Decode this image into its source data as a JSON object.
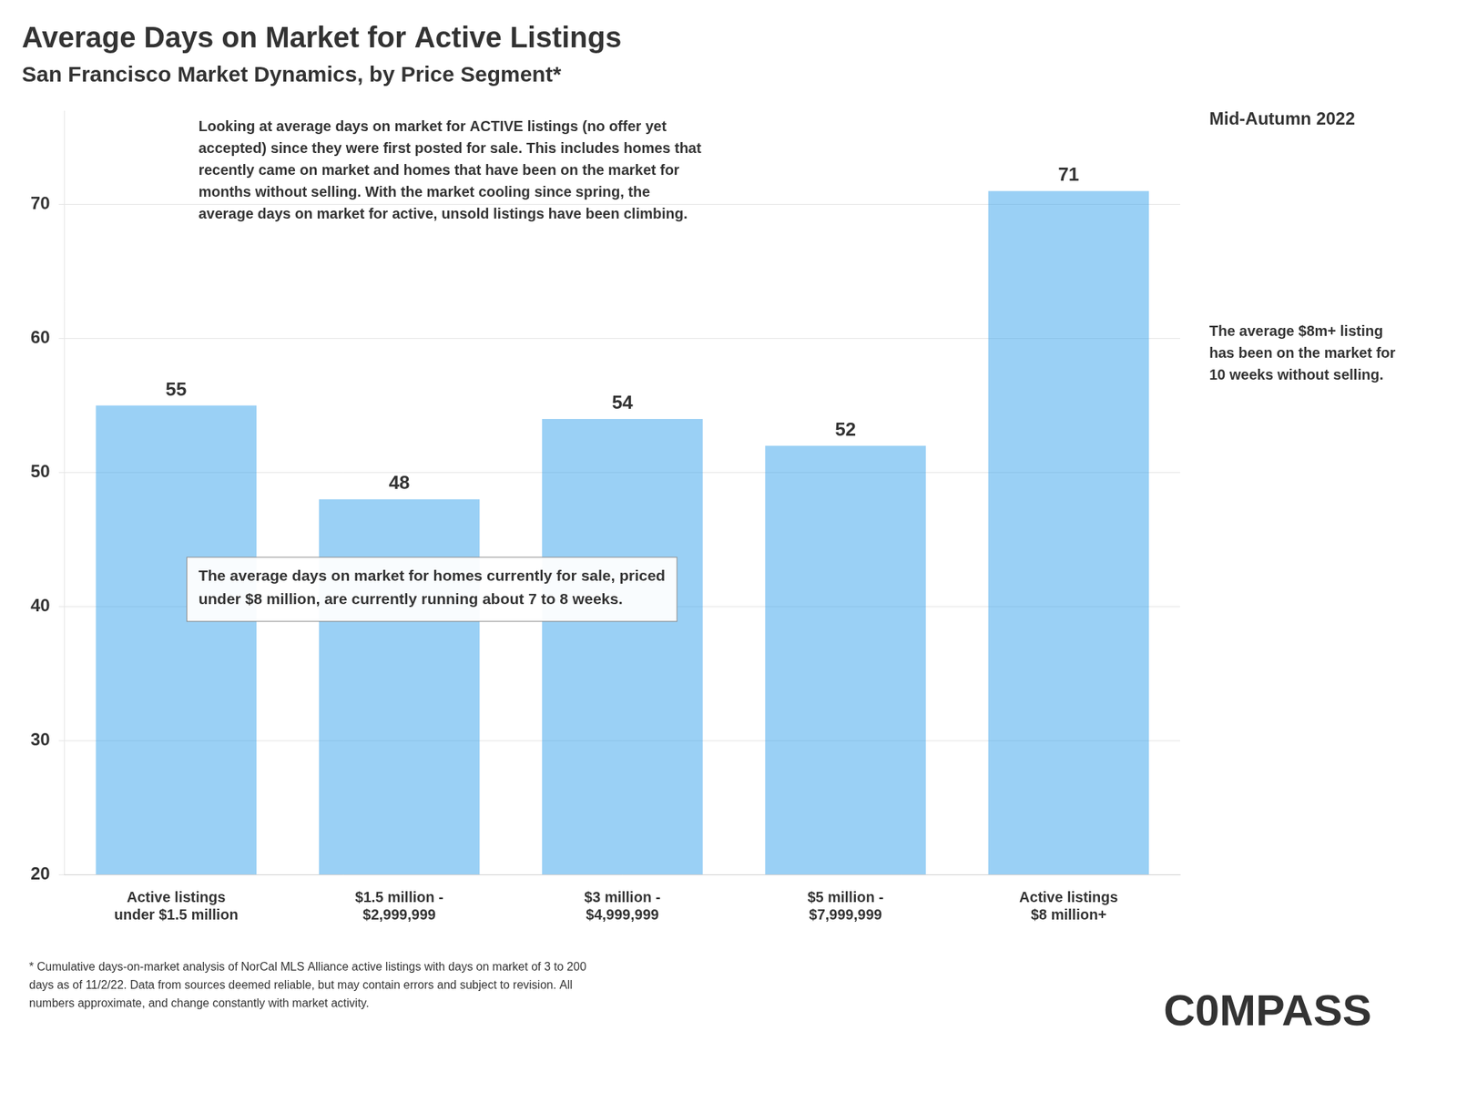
{
  "chart_data": {
    "type": "bar",
    "title": "Average Days on Market for Active Listings",
    "subtitle": "San Francisco Market Dynamics, by Price Segment*",
    "date": "Mid-Autumn 2022",
    "categories": [
      "Active listings\nunder $1.5 million",
      "$1.5 million -\n$2,999,999",
      "$3 million -\n$4,999,999",
      "$5 million -\n$7,999,999",
      "Active listings\n$8 million+"
    ],
    "values": [
      55,
      48,
      54,
      52,
      71
    ],
    "ylim": [
      20,
      77
    ],
    "yticks": [
      20,
      30,
      40,
      50,
      60,
      70
    ],
    "grid": true,
    "data_labels": true,
    "annotations": [
      "Looking at average days on market for ACTIVE listings (no offer yet\naccepted) since they were first posted for sale. This includes homes that\nrecently came on market and homes that have been on the market for\nmonths without selling. With the market cooling since spring, the\naverage days on market for active, unsold listings have been climbing.",
      "The average days on market for homes currently for sale, priced\nunder $8 million, are currently running about 7 to 8 weeks.",
      "The average $8m+ listing\nhas been on the market for\n10 weeks without selling."
    ],
    "footnote": "* Cumulative days-on-market analysis of NorCal MLS Alliance active listings with days on market of 3 to 200\ndays as of 11/2/22. Data from sources deemed reliable, but may contain errors and subject to revision. All\nnumbers approximate, and change constantly with market activity.",
    "logo_text": "C0MPASS"
  }
}
